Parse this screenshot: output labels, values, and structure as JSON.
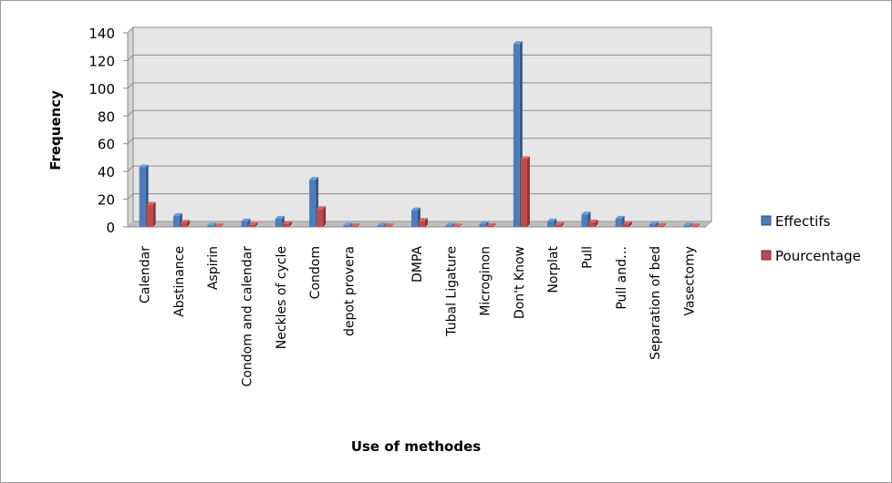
{
  "chart_data": {
    "type": "bar",
    "title": "",
    "xlabel": "Use of methodes",
    "ylabel": "Frequency",
    "ylim": [
      0,
      140
    ],
    "yticks": [
      0,
      20,
      40,
      60,
      80,
      100,
      120,
      140
    ],
    "grid": true,
    "legend_position": "right",
    "categories": [
      "Calendar",
      "Abstinance",
      "Aspirin",
      "Condom and  calendar",
      "Neckles of  cycle",
      "Condom",
      "depot provera",
      "",
      "DMPA",
      "Tubal Ligature",
      "Microginon",
      "Don't Know",
      "Norplat",
      "Pull",
      "Pull and…",
      "Separation of  bed",
      "Vasectomy"
    ],
    "series": [
      {
        "name": "Effectifs",
        "color": "#4a7ebb",
        "values": [
          43,
          8,
          1,
          4,
          6,
          34,
          1,
          1,
          12,
          1,
          2,
          132,
          4,
          9,
          6,
          2,
          1
        ]
      },
      {
        "name": "Pourcentage",
        "color": "#be4b48",
        "values": [
          16,
          3,
          0.4,
          1.5,
          2.2,
          13,
          0.4,
          0.4,
          4.4,
          0.4,
          0.7,
          49,
          1.5,
          3.3,
          2.2,
          0.7,
          0.4
        ]
      }
    ]
  }
}
